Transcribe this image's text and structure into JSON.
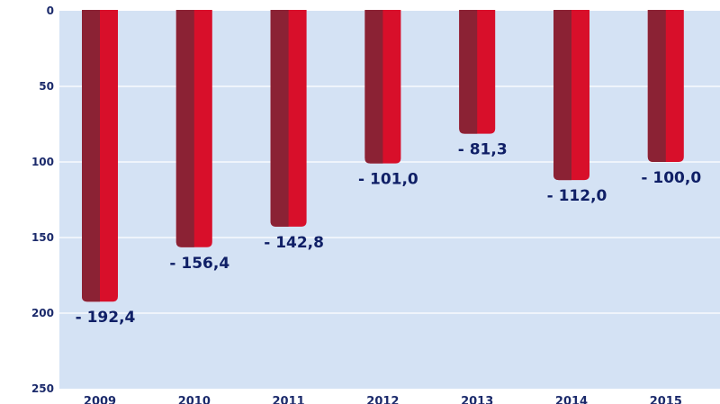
{
  "chart_data": {
    "type": "bar",
    "categories": [
      "2009",
      "2010",
      "2011",
      "2012",
      "2013",
      "2014",
      "2015"
    ],
    "values": [
      192.4,
      156.4,
      142.8,
      101.0,
      81.3,
      112.0,
      100.0
    ],
    "data_labels": [
      "- 192,4",
      "- 156,4",
      "- 142,8",
      "- 101,0",
      "- 81,3",
      "- 112,0",
      "- 100,0"
    ],
    "y_ticks": [
      "0",
      "50",
      "100",
      "150",
      "200",
      "250"
    ],
    "ylim": [
      0,
      250
    ],
    "y_axis_inverted": true,
    "grid": true,
    "colors": {
      "plot_background": "#d4e2f4",
      "gridline": "#ffffff",
      "bar_dark": "#8b2234",
      "bar_light": "#d80f2a",
      "text": "#1b2a6b"
    }
  }
}
